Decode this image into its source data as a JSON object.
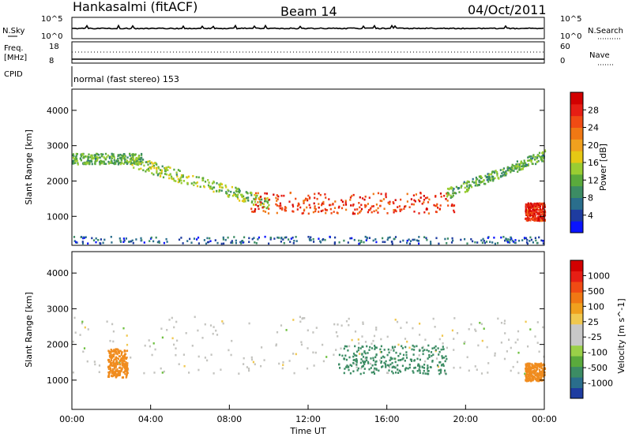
{
  "header": {
    "station": "Hankasalmi (fitACF)",
    "beam": "Beam 14",
    "date": "04/Oct/2011"
  },
  "top_panels": {
    "nsky_label": "N.Sky",
    "nsky_ticks": [
      "10^5",
      "10^0"
    ],
    "nsearch_label": "N.Search",
    "nsearch_ticks": [
      "10^5",
      "10^0"
    ],
    "freq_label": "Freq.",
    "freq_unit": "[MHz]",
    "freq_ticks": [
      "18",
      "8"
    ],
    "nave_label": "Nave",
    "nave_ticks": [
      "60",
      "0"
    ],
    "cpid_label": "CPID",
    "cpid_text": "normal (fast stereo) 153"
  },
  "chart_data": [
    {
      "type": "heatmap",
      "name": "power",
      "ylabel": "Slant Range [km]",
      "yticks": [
        "4000",
        "3000",
        "2000",
        "1000"
      ],
      "ylim": [
        180,
        4600
      ],
      "xlim": [
        0,
        24
      ],
      "colorbar": {
        "label": "Power [dB]",
        "ticks": [
          "28",
          "24",
          "20",
          "16",
          "12",
          "8",
          "4"
        ],
        "colors": [
          "#0a14ff",
          "#1e3ca0",
          "#2a6e8c",
          "#3c8c64",
          "#5aaa3c",
          "#9acd32",
          "#e6c814",
          "#f0a01e",
          "#f07814",
          "#f04b14",
          "#e61e14",
          "#d20000"
        ]
      },
      "bands": [
        {
          "label": "near-range scatter",
          "t_start": 0.0,
          "t_end": 24.0,
          "range_km": [
            250,
            450
          ],
          "power_db": 6
        },
        {
          "label": "upper F-region band",
          "t_start": 0.0,
          "t_end": 3.5,
          "range_km": [
            2500,
            2800
          ],
          "power_db": 12
        },
        {
          "label": "descending band",
          "t_start": 3.0,
          "t_end": 10.0,
          "range_km": [
            1200,
            2400
          ],
          "power_db": 14
        },
        {
          "label": "main ionospheric band",
          "t_start": 9.0,
          "t_end": 19.5,
          "range_km": [
            1100,
            1700
          ],
          "power_db": 26
        },
        {
          "label": "ascending band",
          "t_start": 19.0,
          "t_end": 24.0,
          "range_km": [
            2400,
            2800
          ],
          "power_db": 12
        },
        {
          "label": "evening patch",
          "t_start": 23.0,
          "t_end": 24.0,
          "range_km": [
            900,
            1400
          ],
          "power_db": 27
        }
      ]
    },
    {
      "type": "heatmap",
      "name": "velocity",
      "ylabel": "Slant Range [km]",
      "yticks": [
        "4000",
        "3000",
        "2000",
        "1000"
      ],
      "ylim": [
        180,
        4600
      ],
      "xlim": [
        0,
        24
      ],
      "xlabel": "Time UT",
      "xticks": [
        "00:00",
        "04:00",
        "08:00",
        "12:00",
        "16:00",
        "20:00",
        "00:00"
      ],
      "colorbar": {
        "label": "Velocity [m s^-1]",
        "ticks": [
          "1000",
          "500",
          "100",
          "25",
          "-25",
          "-100",
          "-500",
          "-1000"
        ],
        "colors": [
          "#1e3ca0",
          "#2a6e8c",
          "#3c8c64",
          "#5aaa3c",
          "#9ad048",
          "#c8c8c8",
          "#c8c8c8",
          "#f0c850",
          "#f0a01e",
          "#f07814",
          "#f04b14",
          "#e61e14",
          "#d20000"
        ]
      },
      "bands": [
        {
          "label": "ground scatter",
          "t_start": 0.0,
          "t_end": 24.0,
          "range_km": [
            1200,
            2800
          ],
          "velocity_ms": 0
        },
        {
          "label": "early patch",
          "t_start": 1.8,
          "t_end": 2.8,
          "range_km": [
            1100,
            1900
          ],
          "velocity_ms": -300
        },
        {
          "label": "midday positive",
          "t_start": 13.5,
          "t_end": 19.0,
          "range_km": [
            1200,
            2000
          ],
          "velocity_ms": 150
        },
        {
          "label": "late patch",
          "t_start": 23.0,
          "t_end": 24.0,
          "range_km": [
            1000,
            1500
          ],
          "velocity_ms": -400
        }
      ]
    }
  ]
}
